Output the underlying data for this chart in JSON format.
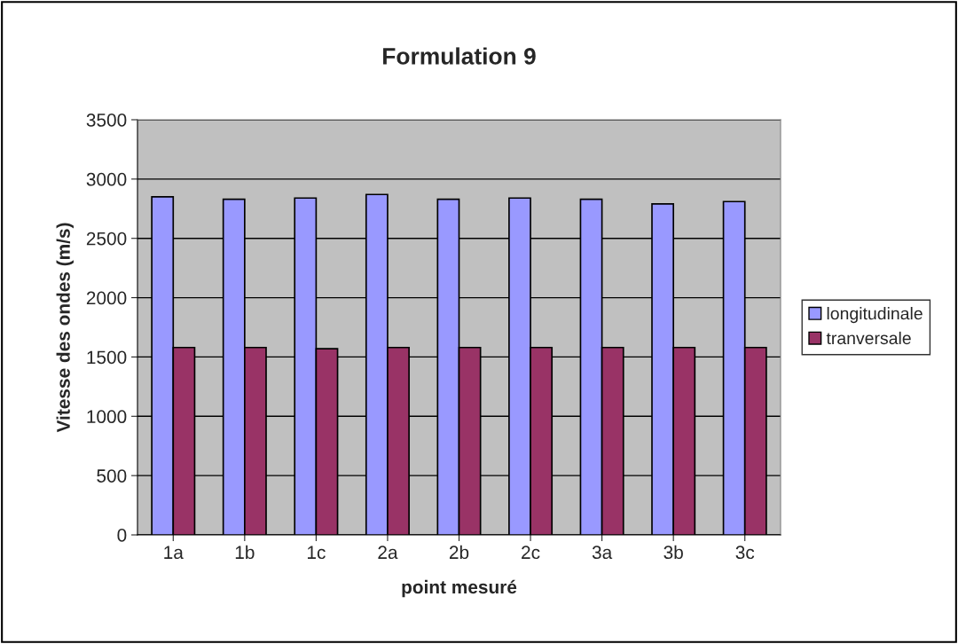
{
  "chart_data": {
    "type": "bar",
    "title": "Formulation 9",
    "xlabel": "point mesuré",
    "ylabel": "Vitesse des ondes (m/s)",
    "categories": [
      "1a",
      "1b",
      "1c",
      "2a",
      "2b",
      "2c",
      "3a",
      "3b",
      "3c"
    ],
    "series": [
      {
        "name": "longitudinale",
        "color": "#9999ff",
        "values": [
          2850,
          2830,
          2840,
          2870,
          2830,
          2840,
          2830,
          2790,
          2810
        ]
      },
      {
        "name": "tranversale",
        "color": "#993366",
        "values": [
          1580,
          1580,
          1570,
          1580,
          1580,
          1580,
          1580,
          1580,
          1580
        ]
      }
    ],
    "ylim": [
      0,
      3500
    ],
    "yticks": [
      0,
      500,
      1000,
      1500,
      2000,
      2500,
      3000,
      3500
    ],
    "grid": "y",
    "legend": "right"
  }
}
